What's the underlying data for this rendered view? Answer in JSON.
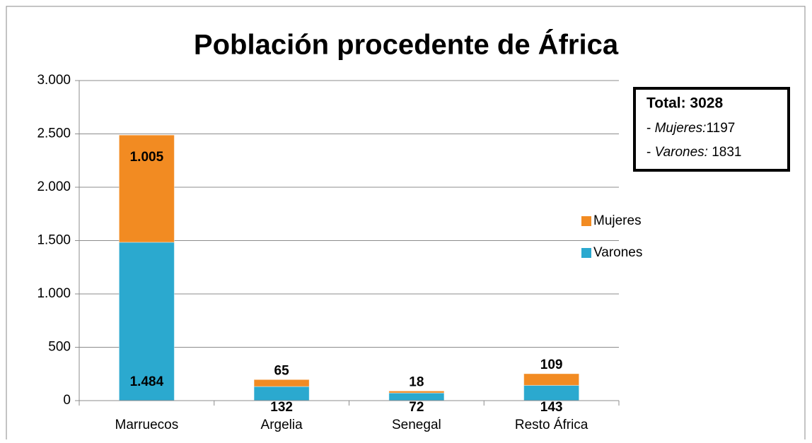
{
  "chart_data": {
    "type": "stacked_bar",
    "title": "Población procedente de África",
    "categories": [
      "Marruecos",
      "Argelia",
      "Senegal",
      "Resto África"
    ],
    "series": [
      {
        "name": "Varones",
        "color": "#2ba9cf",
        "values": [
          1484,
          132,
          72,
          143
        ],
        "value_labels": [
          "1.484",
          "132",
          "72",
          "143"
        ]
      },
      {
        "name": "Mujeres",
        "color": "#f28b22",
        "values": [
          1005,
          65,
          18,
          109
        ],
        "value_labels": [
          "1.005",
          "65",
          "18",
          "109"
        ]
      }
    ],
    "ylim": [
      0,
      3000
    ],
    "yticks": [
      0,
      500,
      {
        "value": 1000,
        "label": "1.000"
      },
      {
        "value": 1500,
        "label": "1.500"
      },
      {
        "value": 2000,
        "label": "2.000"
      },
      {
        "value": 2500,
        "label": "2.500"
      },
      {
        "value": 3000,
        "label": "3.000"
      }
    ],
    "grid": true,
    "legend": "right",
    "annotation": {
      "heading": "Total: 3028",
      "items": [
        {
          "marker": "-",
          "label": "Mujeres:",
          "value": "1197"
        },
        {
          "marker": "-",
          "label": "Varones:",
          "value": "1831"
        }
      ]
    }
  }
}
